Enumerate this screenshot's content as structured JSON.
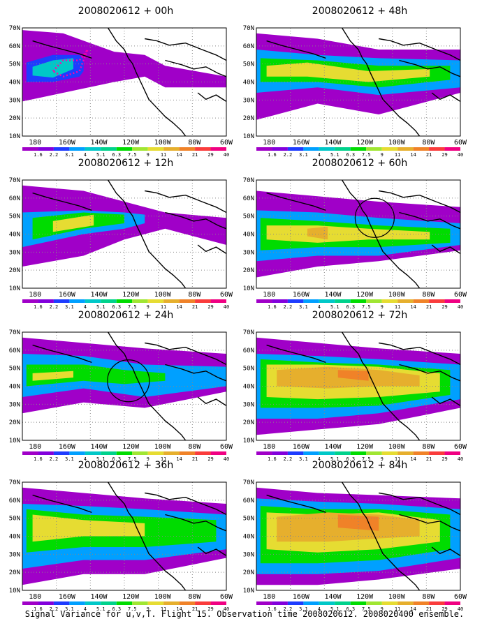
{
  "panels": [
    {
      "title": "2008020612 + 00h"
    },
    {
      "title": "2008020612 + 48h"
    },
    {
      "title": "2008020612 + 12h"
    },
    {
      "title": "2008020612 + 60h"
    },
    {
      "title": "2008020612 + 24h"
    },
    {
      "title": "2008020612 + 72h"
    },
    {
      "title": "2008020612 + 36h"
    },
    {
      "title": "2008020612 + 84h"
    }
  ],
  "lat_labels": [
    "70N",
    "60N",
    "50N",
    "40N",
    "30N",
    "20N",
    "10N"
  ],
  "lon_labels": [
    "180",
    "160W",
    "140W",
    "120W",
    "100W",
    "80W",
    "60W"
  ],
  "colorbar": {
    "labels": [
      "1.6",
      "2.2",
      "3.1",
      "4",
      "5.1",
      "6.3",
      "7.5",
      "9",
      "11",
      "14",
      "21",
      "29",
      "40"
    ],
    "colors": [
      "#a000c8",
      "#8200dc",
      "#1e3cff",
      "#00a0ff",
      "#00c8c8",
      "#00d28c",
      "#00dc00",
      "#a0e632",
      "#e6dc32",
      "#e6af2d",
      "#f08228",
      "#fa3c3c",
      "#f00082"
    ]
  },
  "footer": "Signal Variance for u,v,T. Flight 15. Observation time 2008020612. 2008020400 ensemble."
}
